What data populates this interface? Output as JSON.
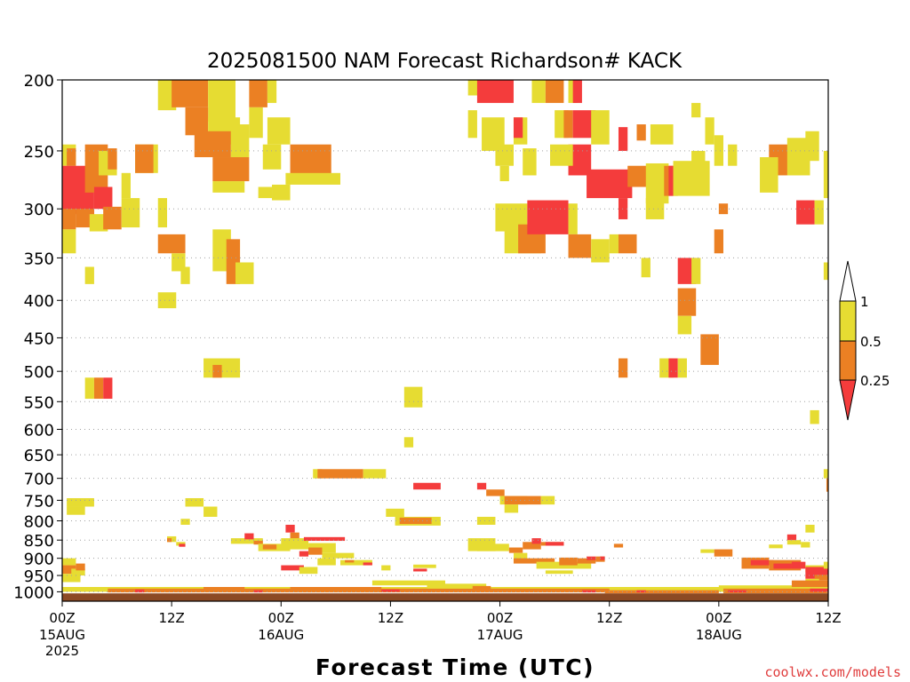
{
  "chart_data": {
    "type": "heatmap",
    "title": "2025081500 NAM Forecast Richardson# KACK",
    "xlabel": "Forecast Time (UTC)",
    "ylabel": "",
    "watermark": "coolwx.com/models",
    "x_unit": "forecast hour",
    "xlim": [
      0,
      84
    ],
    "ylim": [
      1030,
      200
    ],
    "y_scale": "log",
    "grid": "dotted horizontal at labelled pressure levels",
    "x_ticks": [
      {
        "hour": 0,
        "label": "00Z",
        "date": "15AUG",
        "year": "2025"
      },
      {
        "hour": 12,
        "label": "12Z",
        "date": "",
        "year": ""
      },
      {
        "hour": 24,
        "label": "00Z",
        "date": "16AUG",
        "year": ""
      },
      {
        "hour": 36,
        "label": "12Z",
        "date": "",
        "year": ""
      },
      {
        "hour": 48,
        "label": "00Z",
        "date": "17AUG",
        "year": ""
      },
      {
        "hour": 60,
        "label": "12Z",
        "date": "",
        "year": ""
      },
      {
        "hour": 72,
        "label": "00Z",
        "date": "18AUG",
        "year": ""
      },
      {
        "hour": 84,
        "label": "12Z",
        "date": "",
        "year": ""
      }
    ],
    "y_ticks": [
      200,
      250,
      300,
      350,
      400,
      450,
      500,
      550,
      600,
      650,
      700,
      750,
      800,
      850,
      900,
      950,
      1000
    ],
    "colorbar": {
      "labels": [
        "1",
        "0.5",
        "0.25"
      ],
      "colors": {
        "lt025": "#f43c3c",
        "025_05": "#eb8023",
        "05_1": "#e6dc32",
        "ground": "#8c4a24"
      }
    },
    "levels_legend": {
      "r": "Ri < 0.25",
      "o": "0.25–0.5",
      "y": "0.5–1"
    },
    "cells": [
      [
        "y",
        10.5,
        12.5,
        200,
        220
      ],
      [
        "o",
        12,
        16,
        200,
        218
      ],
      [
        "y",
        16,
        19,
        200,
        228
      ],
      [
        "o",
        13.5,
        16,
        218,
        238
      ],
      [
        "y",
        16,
        19.5,
        225,
        245
      ],
      [
        "o",
        14.5,
        18.5,
        235,
        255
      ],
      [
        "y",
        18.5,
        20.5,
        230,
        255
      ],
      [
        "o",
        20.5,
        22.5,
        200,
        218
      ],
      [
        "y",
        22.5,
        23.5,
        200,
        215
      ],
      [
        "y",
        20.5,
        22,
        218,
        240
      ],
      [
        "o",
        16.5,
        20.5,
        255,
        275
      ],
      [
        "y",
        16.5,
        20,
        275,
        285
      ],
      [
        "y",
        22.5,
        25,
        225,
        245
      ],
      [
        "y",
        22,
        24,
        245,
        265
      ],
      [
        "o",
        25,
        29.5,
        245,
        270
      ],
      [
        "y",
        24.5,
        30.5,
        268,
        278
      ],
      [
        "y",
        23,
        25,
        278,
        292
      ],
      [
        "y",
        21.5,
        23,
        280,
        290
      ],
      [
        "y",
        0,
        1.5,
        245,
        262
      ],
      [
        "o",
        0.5,
        1.5,
        248,
        262
      ],
      [
        "r",
        0,
        3.5,
        262,
        305
      ],
      [
        "o",
        2.5,
        5,
        245,
        285
      ],
      [
        "y",
        4,
        6,
        250,
        270
      ],
      [
        "o",
        5,
        6,
        248,
        265
      ],
      [
        "y",
        8,
        10.5,
        245,
        268
      ],
      [
        "y",
        6.5,
        7.5,
        268,
        290
      ],
      [
        "r",
        3.5,
        5.5,
        280,
        300
      ],
      [
        "o",
        1.5,
        3.5,
        300,
        318
      ],
      [
        "y",
        3,
        5,
        305,
        322
      ],
      [
        "o",
        4.5,
        6.5,
        298,
        320
      ],
      [
        "y",
        6.5,
        8.5,
        290,
        318
      ],
      [
        "o",
        0,
        1.5,
        300,
        320
      ],
      [
        "y",
        0,
        1.5,
        320,
        345
      ],
      [
        "y",
        2.5,
        3.5,
        360,
        380
      ],
      [
        "y",
        10.5,
        11.5,
        290,
        318
      ],
      [
        "o",
        10.5,
        13.5,
        325,
        345
      ],
      [
        "y",
        12,
        13.5,
        345,
        365
      ],
      [
        "y",
        13,
        14,
        360,
        380
      ],
      [
        "y",
        16.5,
        18.5,
        320,
        365
      ],
      [
        "o",
        18,
        19.5,
        330,
        380
      ],
      [
        "y",
        19,
        21,
        355,
        380
      ],
      [
        "y",
        10.5,
        12.5,
        390,
        410
      ],
      [
        "y",
        44.5,
        46.5,
        200,
        210
      ],
      [
        "r",
        45.5,
        49.5,
        200,
        215
      ],
      [
        "y",
        44.5,
        45.5,
        220,
        240
      ],
      [
        "y",
        46,
        48.5,
        225,
        250
      ],
      [
        "y",
        49.5,
        51,
        225,
        245
      ],
      [
        "r",
        49.5,
        50.5,
        225,
        240
      ],
      [
        "y",
        51.5,
        53,
        200,
        215
      ],
      [
        "o",
        53,
        55,
        200,
        215
      ],
      [
        "y",
        55.5,
        56.5,
        200,
        215
      ],
      [
        "r",
        56,
        57,
        200,
        215
      ],
      [
        "y",
        47.5,
        49.5,
        245,
        262
      ],
      [
        "y",
        48,
        49,
        262,
        275
      ],
      [
        "y",
        50.5,
        52,
        248,
        270
      ],
      [
        "y",
        54,
        55.5,
        220,
        240
      ],
      [
        "o",
        55,
        56,
        220,
        240
      ],
      [
        "r",
        56,
        58.5,
        220,
        240
      ],
      [
        "y",
        58,
        60,
        220,
        245
      ],
      [
        "r",
        55.5,
        58,
        245,
        270
      ],
      [
        "y",
        53.5,
        56,
        245,
        262
      ],
      [
        "o",
        63,
        64,
        230,
        242
      ],
      [
        "r",
        61,
        62,
        232,
        250
      ],
      [
        "y",
        64.5,
        67,
        230,
        245
      ],
      [
        "r",
        57.5,
        62.5,
        265,
        290
      ],
      [
        "o",
        62,
        64.5,
        262,
        280
      ],
      [
        "y",
        64,
        66.5,
        260,
        295
      ],
      [
        "o",
        66,
        67,
        262,
        288
      ],
      [
        "r",
        66.5,
        67.5,
        262,
        288
      ],
      [
        "o",
        67,
        69,
        262,
        285
      ],
      [
        "y",
        67,
        71,
        258,
        288
      ],
      [
        "y",
        69,
        70.5,
        250,
        268
      ],
      [
        "y",
        71.5,
        72.5,
        238,
        262
      ],
      [
        "y",
        73,
        74,
        245,
        262
      ],
      [
        "o",
        77.5,
        81,
        245,
        270
      ],
      [
        "y",
        76.5,
        78.5,
        255,
        285
      ],
      [
        "y",
        79.5,
        82,
        240,
        270
      ],
      [
        "y",
        81.5,
        83,
        235,
        258
      ],
      [
        "y",
        83.5,
        84,
        250,
        290
      ],
      [
        "y",
        70.5,
        71.5,
        225,
        245
      ],
      [
        "y",
        69,
        70,
        215,
        225
      ],
      [
        "y",
        47.5,
        51,
        295,
        322
      ],
      [
        "y",
        48.5,
        52.5,
        320,
        345
      ],
      [
        "o",
        50,
        53,
        315,
        345
      ],
      [
        "r",
        51,
        55.5,
        292,
        325
      ],
      [
        "y",
        55.5,
        56.5,
        295,
        325
      ],
      [
        "o",
        55.5,
        58,
        325,
        350
      ],
      [
        "y",
        58,
        60,
        330,
        355
      ],
      [
        "y",
        60,
        61,
        325,
        345
      ],
      [
        "o",
        61,
        63,
        325,
        345
      ],
      [
        "r",
        61,
        62,
        290,
        310
      ],
      [
        "y",
        63.5,
        64.5,
        350,
        372
      ],
      [
        "y",
        64,
        66,
        290,
        310
      ],
      [
        "r",
        67.5,
        69.5,
        350,
        380
      ],
      [
        "y",
        69,
        70,
        350,
        380
      ],
      [
        "o",
        67.5,
        69.5,
        385,
        420
      ],
      [
        "y",
        67.5,
        69,
        420,
        445
      ],
      [
        "o",
        70,
        72,
        445,
        490
      ],
      [
        "o",
        71.5,
        72.5,
        320,
        345
      ],
      [
        "o",
        72,
        73,
        295,
        305
      ],
      [
        "r",
        80.5,
        82.5,
        292,
        315
      ],
      [
        "y",
        82.5,
        83.5,
        292,
        315
      ],
      [
        "y",
        83.5,
        84,
        355,
        375
      ],
      [
        "o",
        8,
        10,
        245,
        268
      ],
      [
        "y",
        2.5,
        3.5,
        510,
        545
      ],
      [
        "o",
        3.5,
        4.5,
        510,
        545
      ],
      [
        "r",
        4.5,
        5.5,
        510,
        545
      ],
      [
        "y",
        15.5,
        19.5,
        480,
        510
      ],
      [
        "o",
        16.5,
        17.5,
        490,
        510
      ],
      [
        "y",
        37.5,
        39.5,
        525,
        560
      ],
      [
        "o",
        61,
        62,
        480,
        510
      ],
      [
        "y",
        65.5,
        67,
        480,
        510
      ],
      [
        "r",
        66.5,
        67.5,
        480,
        510
      ],
      [
        "y",
        67.5,
        68.5,
        480,
        510
      ],
      [
        "y",
        82,
        83,
        565,
        590
      ],
      [
        "y",
        37.5,
        38.5,
        615,
        635
      ],
      [
        "y",
        27.5,
        28.5,
        680,
        700
      ],
      [
        "o",
        28,
        33,
        680,
        700
      ],
      [
        "y",
        33,
        35.5,
        680,
        700
      ],
      [
        "r",
        38.5,
        41.5,
        710,
        725
      ],
      [
        "r",
        45.5,
        46.5,
        710,
        725
      ],
      [
        "o",
        46.5,
        48.5,
        725,
        740
      ],
      [
        "y",
        48,
        51,
        740,
        760
      ],
      [
        "o",
        48.5,
        52.5,
        740,
        760
      ],
      [
        "y",
        52.5,
        54,
        740,
        760
      ],
      [
        "y",
        48.5,
        50,
        760,
        780
      ],
      [
        "y",
        83.5,
        84,
        680,
        700
      ],
      [
        "o",
        83.8,
        84,
        700,
        730
      ],
      [
        "y",
        0.5,
        3.5,
        745,
        765
      ],
      [
        "y",
        0.5,
        2.5,
        765,
        785
      ],
      [
        "y",
        13.5,
        15.5,
        745,
        765
      ],
      [
        "y",
        15.5,
        17,
        765,
        790
      ],
      [
        "y",
        13,
        14,
        795,
        810
      ],
      [
        "y",
        35.5,
        37.5,
        770,
        790
      ],
      [
        "y",
        36.5,
        41.5,
        790,
        812
      ],
      [
        "o",
        37,
        40.5,
        792,
        808
      ],
      [
        "y",
        45.5,
        47.5,
        790,
        810
      ],
      [
        "y",
        11.5,
        12.5,
        840,
        855
      ],
      [
        "o",
        11.5,
        12,
        845,
        855
      ],
      [
        "y",
        12.5,
        13.5,
        855,
        865
      ],
      [
        "r",
        12.8,
        13.5,
        860,
        868
      ],
      [
        "y",
        18.5,
        22,
        845,
        860
      ],
      [
        "r",
        20,
        21,
        832,
        848
      ],
      [
        "o",
        21,
        22,
        852,
        862
      ],
      [
        "y",
        21.5,
        25,
        860,
        880
      ],
      [
        "o",
        22,
        23.5,
        862,
        875
      ],
      [
        "r",
        24.5,
        25.5,
        810,
        830
      ],
      [
        "o",
        25,
        26,
        830,
        848
      ],
      [
        "y",
        24,
        27,
        845,
        875
      ],
      [
        "r",
        26.5,
        31,
        842,
        852
      ],
      [
        "y",
        27,
        30,
        858,
        885
      ],
      [
        "o",
        27,
        28.5,
        870,
        890
      ],
      [
        "r",
        26,
        27,
        880,
        895
      ],
      [
        "y",
        28.5,
        32,
        885,
        900
      ],
      [
        "y",
        28,
        30,
        900,
        920
      ],
      [
        "y",
        30.5,
        34,
        905,
        920
      ],
      [
        "o",
        31,
        32,
        905,
        912
      ],
      [
        "r",
        33,
        34,
        912,
        920
      ],
      [
        "y",
        35,
        36,
        920,
        935
      ],
      [
        "r",
        24,
        26.5,
        920,
        935
      ],
      [
        "y",
        26,
        28,
        925,
        945
      ],
      [
        "r",
        38.5,
        40,
        930,
        938
      ],
      [
        "y",
        38.5,
        41,
        918,
        928
      ],
      [
        "y",
        44.5,
        47.5,
        845,
        880
      ],
      [
        "y",
        45.5,
        49,
        860,
        880
      ],
      [
        "o",
        49,
        50.5,
        870,
        885
      ],
      [
        "y",
        49.5,
        51,
        885,
        910
      ],
      [
        "o",
        50.5,
        52.5,
        855,
        875
      ],
      [
        "r",
        51.5,
        52.5,
        845,
        860
      ],
      [
        "o",
        52.5,
        55,
        855,
        865
      ],
      [
        "r",
        53,
        55,
        855,
        865
      ],
      [
        "o",
        49.5,
        54,
        900,
        915
      ],
      [
        "y",
        52,
        58,
        910,
        930
      ],
      [
        "o",
        54.5,
        56.5,
        898,
        920
      ],
      [
        "o",
        56.5,
        58.5,
        900,
        915
      ],
      [
        "r",
        57.5,
        58.5,
        895,
        905
      ],
      [
        "o",
        58.5,
        59.5,
        895,
        910
      ],
      [
        "r",
        59,
        59.5,
        895,
        905
      ],
      [
        "y",
        53,
        56,
        935,
        945
      ],
      [
        "o",
        60.5,
        61.5,
        860,
        870
      ],
      [
        "y",
        70,
        71.5,
        875,
        885
      ],
      [
        "o",
        71.5,
        73.5,
        875,
        895
      ],
      [
        "o",
        74.5,
        77.5,
        898,
        930
      ],
      [
        "r",
        75.5,
        78,
        905,
        920
      ],
      [
        "o",
        77.5,
        81,
        905,
        935
      ],
      [
        "r",
        78,
        80,
        915,
        930
      ],
      [
        "r",
        80,
        81.5,
        910,
        930
      ],
      [
        "y",
        81,
        82,
        855,
        870
      ],
      [
        "y",
        77.5,
        79,
        862,
        872
      ],
      [
        "y",
        79.5,
        81,
        850,
        862
      ],
      [
        "r",
        79.5,
        80.5,
        835,
        850
      ],
      [
        "y",
        81.5,
        82.5,
        810,
        830
      ],
      [
        "y",
        81.5,
        84,
        920,
        940
      ],
      [
        "r",
        81.5,
        84,
        925,
        960
      ],
      [
        "o",
        82.5,
        84,
        948,
        965
      ],
      [
        "y",
        83.5,
        84,
        910,
        930
      ],
      [
        "y",
        81.5,
        83,
        960,
        975
      ],
      [
        "y",
        0,
        1.5,
        900,
        920
      ],
      [
        "o",
        0,
        1.5,
        920,
        945
      ],
      [
        "y",
        1,
        2.5,
        930,
        950
      ],
      [
        "o",
        1.5,
        2.5,
        915,
        935
      ],
      [
        "y",
        0,
        2,
        945,
        970
      ],
      [
        "y",
        0,
        2,
        985,
        1000
      ],
      [
        "y",
        2,
        84,
        985,
        1000
      ],
      [
        "o",
        5,
        60,
        990,
        1002
      ],
      [
        "r",
        8,
        9,
        993,
        1002
      ],
      [
        "o",
        15.5,
        20,
        985,
        998
      ],
      [
        "r",
        21,
        22,
        995,
        1002
      ],
      [
        "o",
        25,
        35,
        985,
        995
      ],
      [
        "r",
        35,
        37,
        993,
        1000
      ],
      [
        "y",
        34,
        42,
        965,
        980
      ],
      [
        "y",
        40,
        46.5,
        975,
        990
      ],
      [
        "o",
        45,
        47,
        982,
        992
      ],
      [
        "r",
        57,
        58.5,
        995,
        1002
      ],
      [
        "o",
        59.5,
        72,
        995,
        1005
      ],
      [
        "r",
        63,
        64,
        995,
        1002
      ],
      [
        "y",
        72,
        84,
        980,
        995
      ],
      [
        "o",
        72.5,
        84,
        990,
        1005
      ],
      [
        "r",
        82,
        84,
        990,
        1000
      ],
      [
        "r",
        73,
        75,
        995,
        1002
      ],
      [
        "o",
        80,
        84,
        965,
        985
      ]
    ],
    "ground": [
      1005,
      1030
    ]
  }
}
